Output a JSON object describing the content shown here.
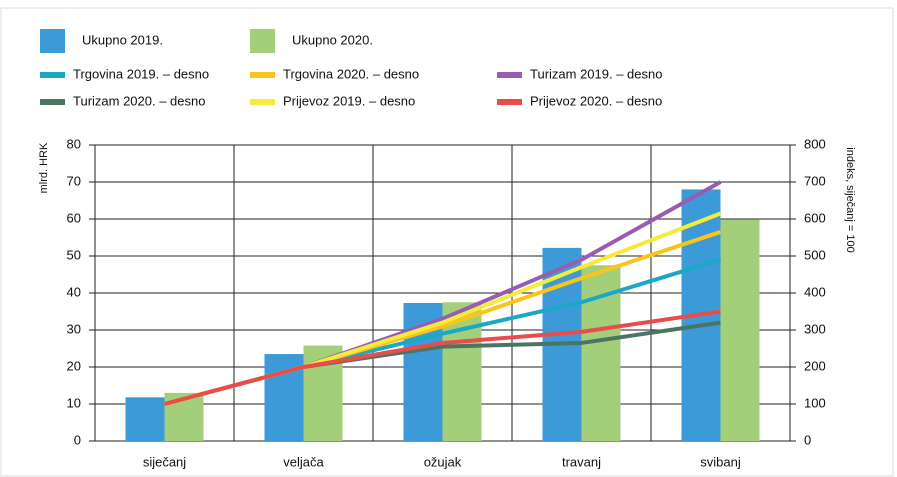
{
  "chart_data": {
    "type": "bar",
    "categories": [
      "siječanj",
      "veljača",
      "ožujak",
      "travanj",
      "svibanj"
    ],
    "y_label": "mlrd. HRK",
    "y2_label": "indeks, siječanj = 100",
    "ylim": [
      0,
      80
    ],
    "yticks": [
      0,
      10,
      20,
      30,
      40,
      50,
      60,
      70,
      80
    ],
    "y2lim": [
      0,
      800
    ],
    "y2ticks": [
      0,
      100,
      200,
      300,
      400,
      500,
      600,
      700,
      800
    ],
    "grid": true,
    "series": [
      {
        "name": "Ukupno 2019.",
        "type": "bar",
        "color": "#3d9ad9",
        "values": [
          11.8,
          23.5,
          37.3,
          52.2,
          68
        ]
      },
      {
        "name": "Ukupno 2020.",
        "type": "bar",
        "color": "#a3cf7b",
        "values": [
          13,
          25.8,
          37.5,
          47.5,
          59.8
        ]
      },
      {
        "name": "Trgovina 2019. – desno",
        "type": "line",
        "axis": "y2",
        "color": "#1ba8c4",
        "values": [
          100,
          200,
          290,
          375,
          490
        ]
      },
      {
        "name": "Trgovina 2020. – desno",
        "type": "line",
        "axis": "y2",
        "color": "#fcc419",
        "values": [
          100,
          200,
          310,
          440,
          565
        ]
      },
      {
        "name": "Turizam 2019. – desno",
        "type": "line",
        "axis": "y2",
        "color": "#9a5bb0",
        "values": [
          100,
          200,
          330,
          490,
          700
        ]
      },
      {
        "name": "Turizam 2020. – desno",
        "type": "line",
        "axis": "y2",
        "color": "#4a7560",
        "values": [
          100,
          200,
          255,
          265,
          320
        ]
      },
      {
        "name": "Prijevoz 2019. – desno",
        "type": "line",
        "axis": "y2",
        "color": "#f5eb3c",
        "values": [
          100,
          200,
          320,
          470,
          615
        ]
      },
      {
        "name": "Prijevoz 2020. – desno",
        "type": "line",
        "axis": "y2",
        "color": "#e94c4c",
        "values": [
          100,
          200,
          265,
          295,
          350
        ]
      }
    ]
  }
}
